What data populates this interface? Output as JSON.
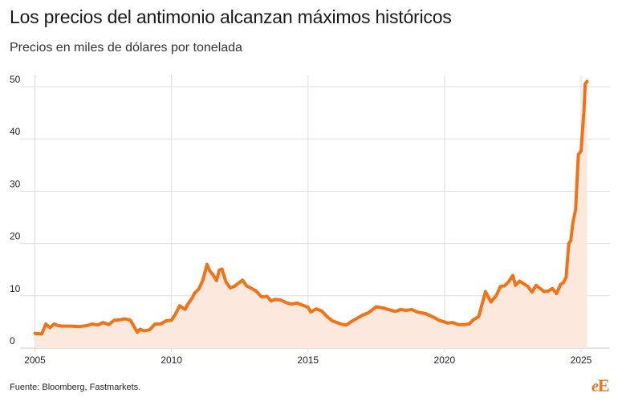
{
  "title": "Los precios del antimonio alcanzan máximos históricos",
  "subtitle": "Precios en miles de dólares por tonelada",
  "source": "Fuente: Bloomberg, Fastmarkets.",
  "logo": {
    "e": "e",
    "E": "E"
  },
  "colors": {
    "line": "#f47216",
    "area": "#fde8de",
    "grid": "#dddddd"
  },
  "chart_data": {
    "type": "area",
    "title": "Los precios del antimonio alcanzan máximos históricos",
    "ylabel": "",
    "xlabel": "",
    "xlim": [
      2005,
      2025.6
    ],
    "ylim": [
      0,
      52
    ],
    "xticks": [
      2005,
      2010,
      2015,
      2020,
      2025
    ],
    "xtick_labels": [
      "2005",
      "2010",
      "2015",
      "2020",
      "2025"
    ],
    "yticks": [
      0,
      10,
      20,
      30,
      40,
      50
    ],
    "ytick_labels": [
      "0",
      "10",
      "20",
      "30",
      "40",
      "50"
    ],
    "grid": true,
    "series": [
      {
        "x": [
          2005.0,
          2005.25,
          2005.4,
          2005.55,
          2005.7,
          2005.85,
          2006.0,
          2006.3,
          2006.6,
          2006.9,
          2007.1,
          2007.3,
          2007.5,
          2007.7,
          2007.9,
          2008.1,
          2008.3,
          2008.5,
          2008.75,
          2008.85,
          2009.0,
          2009.2,
          2009.4,
          2009.6,
          2009.8,
          2010.0,
          2010.15,
          2010.3,
          2010.5,
          2010.6,
          2010.75,
          2010.85,
          2011.0,
          2011.15,
          2011.3,
          2011.4,
          2011.55,
          2011.65,
          2011.75,
          2011.85,
          2012.0,
          2012.15,
          2012.3,
          2012.45,
          2012.6,
          2012.75,
          2012.9,
          2013.1,
          2013.3,
          2013.5,
          2013.65,
          2013.8,
          2014.0,
          2014.2,
          2014.4,
          2014.6,
          2014.8,
          2015.0,
          2015.1,
          2015.3,
          2015.5,
          2015.7,
          2015.9,
          2016.0,
          2016.2,
          2016.4,
          2016.6,
          2016.8,
          2017.0,
          2017.2,
          2017.5,
          2017.8,
          2018.0,
          2018.2,
          2018.4,
          2018.6,
          2018.8,
          2019.0,
          2019.3,
          2019.6,
          2019.8,
          2020.0,
          2020.1,
          2020.3,
          2020.5,
          2020.7,
          2020.9,
          2021.05,
          2021.25,
          2021.5,
          2021.7,
          2021.9,
          2022.05,
          2022.2,
          2022.35,
          2022.5,
          2022.6,
          2022.75,
          2022.9,
          2023.05,
          2023.2,
          2023.35,
          2023.5,
          2023.65,
          2023.8,
          2023.95,
          2024.1,
          2024.25,
          2024.35,
          2024.45,
          2024.55,
          2024.62,
          2024.7,
          2024.8,
          2024.9,
          2025.0,
          2025.1,
          2025.15,
          2025.22
        ],
        "y": [
          2.8,
          2.7,
          4.6,
          3.9,
          4.6,
          4.3,
          4.2,
          4.2,
          4.1,
          4.3,
          4.6,
          4.4,
          4.9,
          4.5,
          5.3,
          5.4,
          5.6,
          5.3,
          3.0,
          3.6,
          3.3,
          3.5,
          4.6,
          4.6,
          5.2,
          5.3,
          6.5,
          8.1,
          7.4,
          8.4,
          9.5,
          10.5,
          11.3,
          13.0,
          16.0,
          14.8,
          13.8,
          12.9,
          14.9,
          15.1,
          12.6,
          11.5,
          11.8,
          12.4,
          13.0,
          11.9,
          11.5,
          10.9,
          9.8,
          9.9,
          9.0,
          9.3,
          9.2,
          8.7,
          8.4,
          8.6,
          8.2,
          7.8,
          6.9,
          7.5,
          7.1,
          6.0,
          5.2,
          5.0,
          4.6,
          4.4,
          5.1,
          5.7,
          6.3,
          6.7,
          7.9,
          7.6,
          7.3,
          7.0,
          7.4,
          7.2,
          7.4,
          6.9,
          6.6,
          5.9,
          5.3,
          5.0,
          4.8,
          4.9,
          4.5,
          4.5,
          4.6,
          5.4,
          6.0,
          10.8,
          8.8,
          10.1,
          11.8,
          11.9,
          12.7,
          13.9,
          12.0,
          12.8,
          12.3,
          11.8,
          10.7,
          12.0,
          11.4,
          10.8,
          10.9,
          11.4,
          10.4,
          12.2,
          12.5,
          13.5,
          20.0,
          20.5,
          24.0,
          26.5,
          37.0,
          37.7,
          45.0,
          50.5,
          51.0
        ]
      }
    ]
  }
}
